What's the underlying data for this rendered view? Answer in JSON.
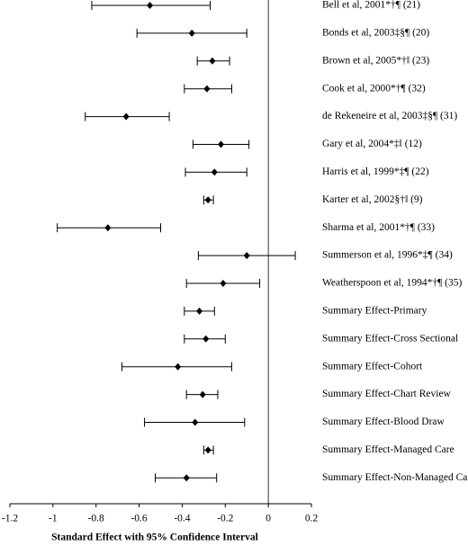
{
  "chart_data": {
    "type": "forest",
    "xlabel": "Standard Effect with 95% Confidence Interval",
    "categories": [
      "Bell et al, 2001*†¶ (21)",
      "Bonds et al, 2003‡§¶ (20)",
      "Brown et al, 2005*†‖ (23)",
      "Cook et al, 2000*†¶ (32)",
      "de Rekeneire et al, 2003‡§¶ (31)",
      "Gary et al, 2004*‡‖ (12)",
      "Harris et al, 1999*‡¶ (22)",
      "Karter et al, 2002§†‖ (9)",
      "Sharma et al, 2001*†¶ (33)",
      "Summerson et al, 1996*‡¶ (34)",
      "Weatherspoon et al, 1994*†¶ (35)",
      "Summary Effect-Primary",
      "Summary Effect-Cross Sectional",
      "Summary Effect-Cohort",
      "Summary Effect-Chart Review",
      "Summary Effect-Blood Draw",
      "Summary Effect-Managed Care",
      "Summary Effect-Non-Managed Care"
    ],
    "values": [
      -0.55,
      -0.355,
      -0.26,
      -0.285,
      -0.66,
      -0.22,
      -0.25,
      -0.28,
      -0.745,
      -0.1,
      -0.21,
      -0.32,
      -0.29,
      -0.42,
      -0.305,
      -0.34,
      -0.28,
      -0.38
    ],
    "lower": [
      -0.82,
      -0.61,
      -0.33,
      -0.39,
      -0.85,
      -0.35,
      -0.385,
      -0.3,
      -0.98,
      -0.325,
      -0.38,
      -0.39,
      -0.39,
      -0.68,
      -0.38,
      -0.575,
      -0.3,
      -0.525
    ],
    "upper": [
      -0.27,
      -0.1,
      -0.18,
      -0.17,
      -0.46,
      -0.09,
      -0.1,
      -0.255,
      -0.5,
      0.125,
      -0.04,
      -0.25,
      -0.2,
      -0.17,
      -0.235,
      -0.11,
      -0.255,
      -0.24
    ],
    "color": "#000000",
    "xlim": [
      -1.2,
      0.2
    ],
    "xticks": [
      -1.2,
      -1,
      -0.8,
      -0.6,
      -0.4,
      -0.2,
      0,
      0.2
    ]
  }
}
